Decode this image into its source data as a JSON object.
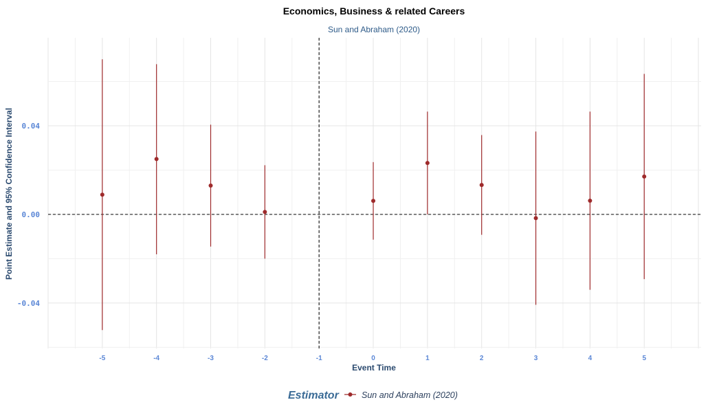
{
  "chart_data": {
    "type": "scatter",
    "title": "Economics, Business & related Careers",
    "subtitle": "Sun and Abraham (2020)",
    "xlabel": "Event Time",
    "ylabel": "Point Estimate and 95% Confidence Interval",
    "x_ticks": [
      -5,
      -4,
      -3,
      -2,
      -1,
      0,
      1,
      2,
      3,
      4,
      5
    ],
    "x_tick_labels": [
      "-5",
      "-4",
      "-3",
      "-2",
      "-1",
      "0",
      "1",
      "2",
      "3",
      "4",
      "5"
    ],
    "y_ticks": [
      -0.04,
      0.0,
      0.04
    ],
    "y_tick_labels": [
      "-0.04",
      "0.00",
      "0.04"
    ],
    "xlim": [
      -6.0,
      6.05
    ],
    "ylim": [
      -0.0605,
      0.0797
    ],
    "reference_lines": {
      "vertical_x": -1,
      "horizontal_y": 0
    },
    "grid": true,
    "legend": {
      "title": "Estimator",
      "position": "bottom"
    },
    "series": [
      {
        "name": "Sun and Abraham (2020)",
        "color": "#9e2a2b",
        "points": [
          {
            "x": -5,
            "estimate": 0.0089,
            "ci_low": -0.0522,
            "ci_high": 0.07
          },
          {
            "x": -4,
            "estimate": 0.025,
            "ci_low": -0.018,
            "ci_high": 0.0678
          },
          {
            "x": -3,
            "estimate": 0.013,
            "ci_low": -0.0145,
            "ci_high": 0.0405
          },
          {
            "x": -2,
            "estimate": 0.0011,
            "ci_low": -0.02,
            "ci_high": 0.0222
          },
          {
            "x": 0,
            "estimate": 0.0061,
            "ci_low": -0.0114,
            "ci_high": 0.0236
          },
          {
            "x": 1,
            "estimate": 0.0232,
            "ci_low": 0.0,
            "ci_high": 0.0464
          },
          {
            "x": 2,
            "estimate": 0.0133,
            "ci_low": -0.0092,
            "ci_high": 0.0358
          },
          {
            "x": 3,
            "estimate": -0.0017,
            "ci_low": -0.0408,
            "ci_high": 0.0374
          },
          {
            "x": 4,
            "estimate": 0.0062,
            "ci_low": -0.034,
            "ci_high": 0.0464
          },
          {
            "x": 5,
            "estimate": 0.0171,
            "ci_low": -0.0292,
            "ci_high": 0.0634
          }
        ]
      }
    ]
  }
}
